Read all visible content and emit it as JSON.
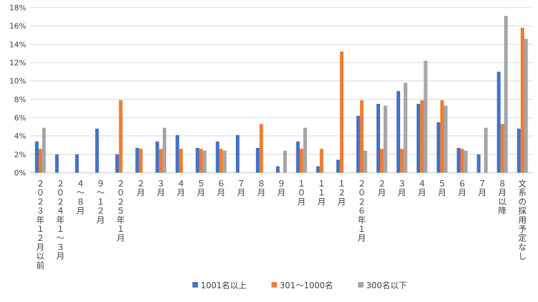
{
  "chart_data": {
    "type": "bar",
    "title": "",
    "xlabel": "",
    "ylabel": "",
    "ylim": [
      0,
      18
    ],
    "y_ticks": [
      "0%",
      "2%",
      "4%",
      "6%",
      "8%",
      "10%",
      "12%",
      "14%",
      "16%",
      "18%"
    ],
    "y_tick_values": [
      0,
      2,
      4,
      6,
      8,
      10,
      12,
      14,
      16,
      18
    ],
    "grid": true,
    "legend_position": "bottom",
    "categories": [
      "２０２３年１２月以前",
      "２０２４年１～３月",
      "４～８月",
      "９～１２月",
      "２０２５年１月",
      "２月",
      "３月",
      "４月",
      "５月",
      "６月",
      "７月",
      "８月",
      "９月",
      "１０月",
      "１１月",
      "１２月",
      "２０２６年１月",
      "２月",
      "３月",
      "４月",
      "５月",
      "６月",
      "７月",
      "８月以降",
      "文系の採用予定なし"
    ],
    "series": [
      {
        "name": "1001名以上",
        "color": "#4472C4",
        "values": [
          3.4,
          2.0,
          2.0,
          4.8,
          2.0,
          2.7,
          3.4,
          4.1,
          2.7,
          3.4,
          4.1,
          2.7,
          0.7,
          3.4,
          0.7,
          1.4,
          6.2,
          7.5,
          8.9,
          7.5,
          5.5,
          2.7,
          2.0,
          11.0,
          4.8
        ]
      },
      {
        "name": "301～1000名",
        "color": "#ED7D31",
        "values": [
          2.6,
          0,
          0,
          0,
          7.9,
          2.6,
          2.6,
          2.6,
          2.6,
          2.6,
          0,
          5.3,
          0,
          2.6,
          2.6,
          13.2,
          7.9,
          2.6,
          2.6,
          7.9,
          7.9,
          2.6,
          0,
          5.3,
          15.8
        ]
      },
      {
        "name": "300名以下",
        "color": "#A5A5A5",
        "values": [
          4.9,
          0,
          0,
          0,
          0,
          0,
          4.9,
          0,
          2.4,
          2.4,
          0,
          0,
          2.4,
          4.9,
          0,
          0,
          2.4,
          7.3,
          9.8,
          12.2,
          7.3,
          2.4,
          4.9,
          17.1,
          14.6
        ]
      }
    ]
  }
}
